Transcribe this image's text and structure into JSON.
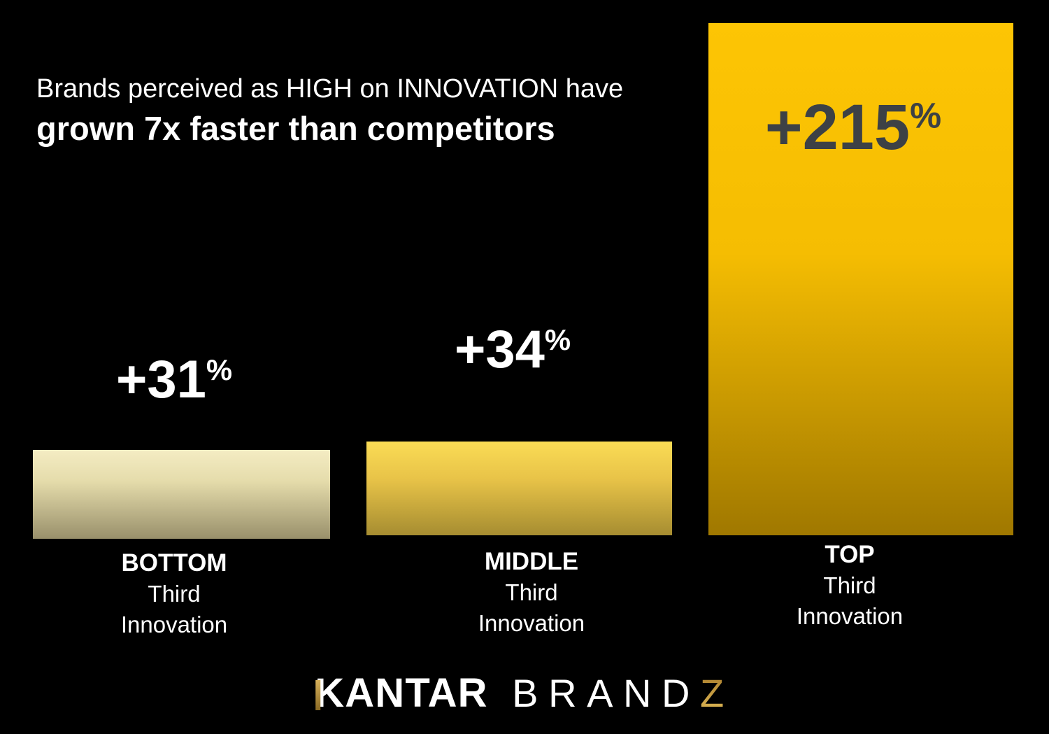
{
  "title": {
    "line1": "Brands perceived as HIGH on INNOVATION have",
    "line2": "grown 7x faster than competitors"
  },
  "chart_data": {
    "type": "bar",
    "title": "Brands perceived as HIGH on INNOVATION have grown 7x faster than competitors",
    "categories": [
      "BOTTOM Third Innovation",
      "MIDDLE Third Innovation",
      "TOP Third Innovation"
    ],
    "values": [
      31,
      34,
      215
    ],
    "value_labels": [
      "+31%",
      "+34%",
      "+215%"
    ],
    "unit": "%",
    "xlabel": "",
    "ylabel": "",
    "grid": false,
    "legend": false,
    "background_color": "#000000",
    "bar_gradients": [
      {
        "top": "#f4ecc3",
        "bottom": "#99906b"
      },
      {
        "top": "#fadc55",
        "bottom": "#a68d31"
      },
      {
        "top": "#fdc504",
        "bottom": "#a07800"
      }
    ],
    "value_label_colors": [
      "#ffffff",
      "#ffffff",
      "#3d4145"
    ]
  },
  "bars": [
    {
      "value": "+31",
      "unit": "%",
      "label_line1": "BOTTOM",
      "label_line2": "Third",
      "label_line3": "Innovation"
    },
    {
      "value": "+34",
      "unit": "%",
      "label_line1": "MIDDLE",
      "label_line2": "Third",
      "label_line3": "Innovation"
    },
    {
      "value": "+215",
      "unit": "%",
      "label_line1": "TOP",
      "label_line2": "Third",
      "label_line3": "Innovation"
    }
  ],
  "logo": {
    "kantar": "KANTAR",
    "brand": "BRAND",
    "z": "Z",
    "gold_color": "#c59a3f"
  }
}
